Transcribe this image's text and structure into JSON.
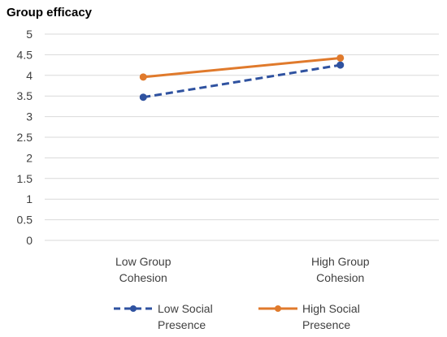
{
  "chart_data": {
    "type": "line",
    "title": "Group efficacy",
    "xlabel": "",
    "ylabel": "",
    "categories": [
      "Low Group Cohesion",
      "High Group Cohesion"
    ],
    "ylim": [
      0,
      5
    ],
    "y_ticks": [
      "0",
      "0.5",
      "1",
      "1.5",
      "2",
      "2.5",
      "3",
      "3.5",
      "4",
      "4.5",
      "5"
    ],
    "grid": true,
    "legend_position": "bottom",
    "series": [
      {
        "name": "Low Social Presence",
        "values": [
          3.47,
          4.25
        ],
        "color": "#2f52a0",
        "line_style": "dashed",
        "marker": "circle"
      },
      {
        "name": "High Social Presence",
        "values": [
          3.96,
          4.42
        ],
        "color": "#e07a2c",
        "line_style": "solid",
        "marker": "circle"
      }
    ]
  }
}
